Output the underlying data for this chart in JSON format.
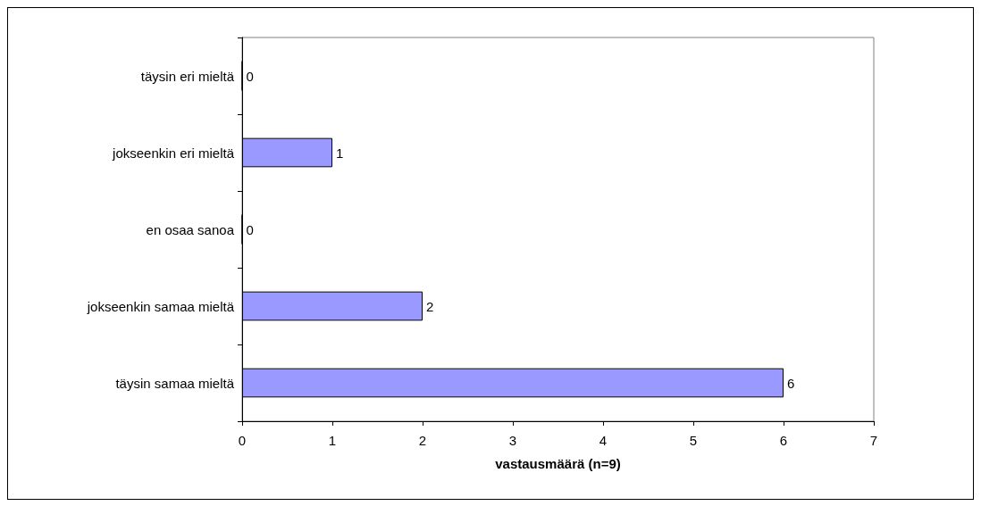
{
  "chart_data": {
    "type": "bar",
    "orientation": "horizontal",
    "xlabel": "vastausmäärä (n=9)",
    "categories": [
      "täysin eri mieltä",
      "jokseenkin eri mieltä",
      "en osaa sanoa",
      "jokseenkin samaa mieltä",
      "täysin samaa mieltä"
    ],
    "values": [
      0,
      1,
      0,
      2,
      6
    ],
    "color": "#9999ff",
    "xlim": [
      0,
      7
    ],
    "xticks": [
      0,
      1,
      2,
      3,
      4,
      5,
      6,
      7
    ],
    "grid": false,
    "data_labels": true
  }
}
